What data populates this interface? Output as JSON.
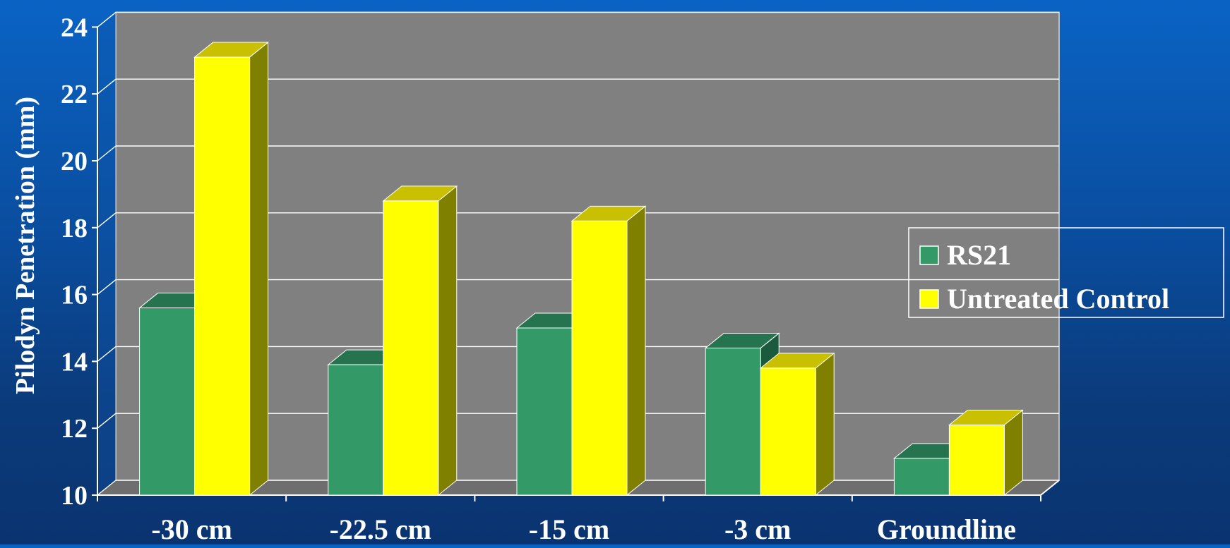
{
  "chart_data": {
    "type": "bar",
    "title": "",
    "xlabel": "",
    "ylabel": "Pilodyn Penetration (mm)",
    "ylim": [
      10,
      24
    ],
    "yticks": [
      "10",
      "12",
      "14",
      "16",
      "18",
      "20",
      "22",
      "24"
    ],
    "categories": [
      "-30 cm",
      "-22.5 cm",
      "-15 cm",
      "-3 cm",
      "Groundline"
    ],
    "series": [
      {
        "name": "RS21",
        "values": [
          15.6,
          13.9,
          15.0,
          14.4,
          11.1
        ]
      },
      {
        "name": "Untreated Control",
        "values": [
          23.1,
          18.8,
          18.2,
          13.8,
          12.1
        ]
      }
    ],
    "grid": true,
    "legend_position": "right",
    "style": "3d-clustered",
    "colors": {
      "RS21_front": "#339966",
      "RS21_top": "#267350",
      "RS21_side": "#1c5a3e",
      "Control_front": "#ffff00",
      "Control_top": "#c8c000",
      "Control_side": "#808000",
      "plot_back": "#808080",
      "plot_floor": "#6e6e6e",
      "gridline": "#ffffff"
    }
  }
}
